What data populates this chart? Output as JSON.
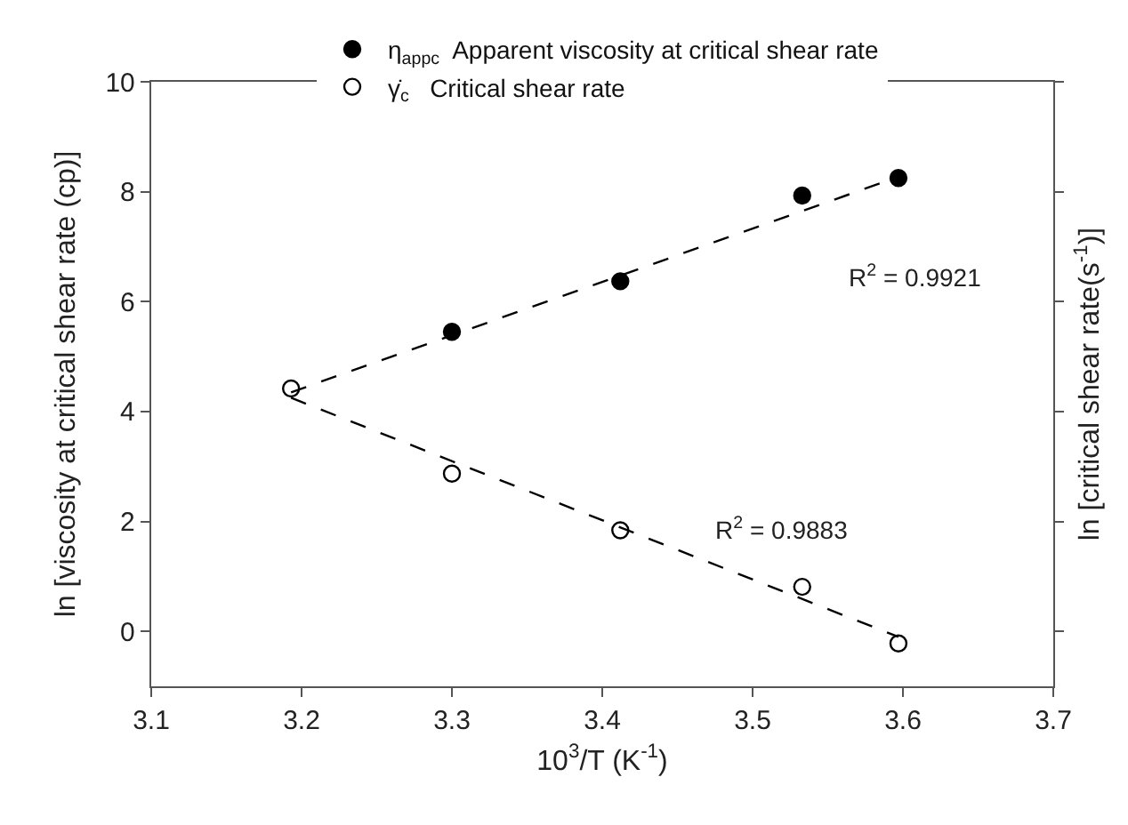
{
  "chart_data": {
    "type": "scatter",
    "xlabel": "10$^{3}$/T (K$^{-1}$)",
    "ylabel": "ln [viscosity at critical shear rate (cp)]",
    "y2label": "ln [critical shear rate(s$^{-1}$)]",
    "xlim": [
      3.1,
      3.7
    ],
    "xticks": [
      3.1,
      3.2,
      3.3,
      3.4,
      3.5,
      3.6,
      3.7
    ],
    "ylim": [
      -1,
      10
    ],
    "yticks": [
      0,
      2,
      4,
      6,
      8,
      10
    ],
    "tick_labels": "xy",
    "grid": false,
    "legend": "top",
    "marker": "circle",
    "series": [
      {
        "name": "η$_{app}$$_{c}$  Apparent viscosity at critical shear rate",
        "color": "#000000",
        "x": [
          3.3,
          3.412,
          3.533,
          3.597
        ],
        "values": [
          5.45,
          6.37,
          7.93,
          8.25
        ]
      },
      {
        "name": "γ̇$_{c}$   Critical shear rate",
        "color": "#ffffff",
        "x": [
          3.193,
          3.3,
          3.412,
          3.533,
          3.597
        ],
        "values": [
          4.42,
          2.87,
          1.84,
          0.81,
          -0.22
        ]
      },
      {
        "type": "line",
        "color": "#000000",
        "line_style": "dashed",
        "marker": "none",
        "x": [
          3.193,
          3.597
        ],
        "values": [
          4.35,
          8.27
        ]
      },
      {
        "type": "line",
        "color": "#000000",
        "line_style": "dashed",
        "marker": "none",
        "x": [
          3.193,
          3.597
        ],
        "values": [
          4.25,
          -0.1
        ]
      }
    ],
    "annotations": [
      "R$^{2}$ = 0.9921",
      "R$^{2}$ = 0.9883"
    ]
  }
}
